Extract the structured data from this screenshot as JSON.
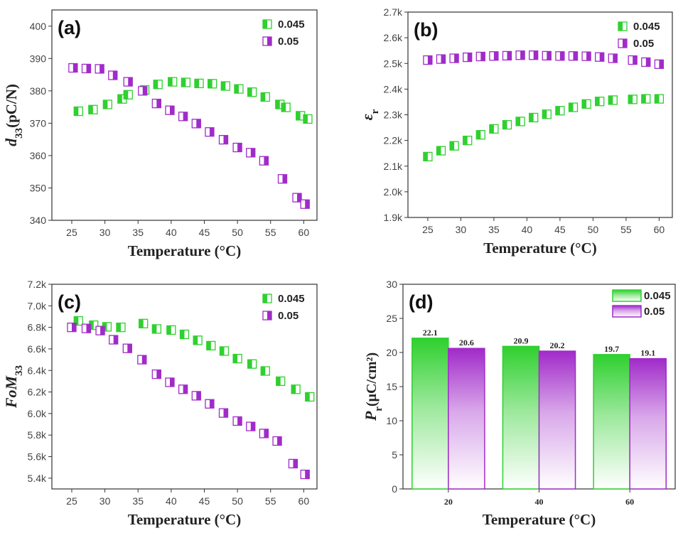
{
  "colors": {
    "green": "#2fd02f",
    "purple": "#a12bc9",
    "green_light": "#e9fbe9",
    "purple_light": "#f6ecfb"
  },
  "chart_data": [
    {
      "id": "a",
      "type": "scatter",
      "panel_label": "(a)",
      "ylabel_main": "d",
      "ylabel_sub": "33",
      "ylabel_rest": "(pC/N)",
      "xlabel": "Temperature (°C)",
      "xlim": [
        22,
        62
      ],
      "ylim": [
        340,
        405
      ],
      "xticks": [
        25,
        30,
        35,
        40,
        45,
        50,
        55,
        60
      ],
      "yticks": [
        340,
        350,
        360,
        370,
        380,
        390,
        400
      ],
      "ytick_labels": [
        "340",
        "350",
        "360",
        "370",
        "380",
        "390",
        "400"
      ],
      "series": [
        {
          "name": "0.045",
          "color": "green",
          "x": [
            26,
            28.2,
            30.4,
            32.6,
            33.5,
            36,
            38,
            40.2,
            42.2,
            44.2,
            46.2,
            48.2,
            50.2,
            52.2,
            54.2,
            56.4,
            57.3,
            59.5,
            60.6
          ],
          "y": [
            373.7,
            374.2,
            375.8,
            377.5,
            378.8,
            380.3,
            382,
            382.8,
            382.6,
            382.3,
            382.2,
            381.5,
            380.6,
            379.6,
            378.1,
            375.8,
            374.9,
            372.3,
            371.3
          ]
        },
        {
          "name": "0.05",
          "color": "purple",
          "x": [
            25.2,
            27.2,
            29.2,
            31.2,
            33.5,
            35.7,
            37.8,
            39.8,
            41.8,
            43.8,
            45.8,
            47.9,
            50,
            52,
            54,
            56.8,
            59,
            60.2
          ],
          "y": [
            387.1,
            386.9,
            386.8,
            384.8,
            382.8,
            380,
            376.1,
            374,
            372.1,
            369.9,
            367.3,
            364.9,
            362.5,
            360.9,
            358.4,
            352.8,
            347,
            345
          ]
        }
      ]
    },
    {
      "id": "b",
      "type": "scatter",
      "panel_label": "(b)",
      "ylabel_main": "ε",
      "ylabel_sub": "r",
      "ylabel_rest": "",
      "xlabel": "Temperature (°C)",
      "xlim": [
        22,
        62
      ],
      "ylim": [
        1.9,
        2.7
      ],
      "xticks": [
        25,
        30,
        35,
        40,
        45,
        50,
        55,
        60
      ],
      "yticks": [
        1.9,
        2.0,
        2.1,
        2.2,
        2.3,
        2.4,
        2.5,
        2.6,
        2.7
      ],
      "ytick_labels": [
        "1.9k",
        "2.0k",
        "2.1k",
        "2.2k",
        "2.3k",
        "2.4k",
        "2.5k",
        "2.6k",
        "2.7k"
      ],
      "series": [
        {
          "name": "0.045",
          "color": "green",
          "x": [
            25,
            27,
            29,
            31,
            33,
            35,
            37,
            39,
            41,
            43,
            45,
            47,
            49,
            51,
            53,
            56,
            58,
            60
          ],
          "y": [
            2.137,
            2.16,
            2.179,
            2.2,
            2.222,
            2.245,
            2.261,
            2.274,
            2.289,
            2.302,
            2.316,
            2.329,
            2.342,
            2.352,
            2.357,
            2.36,
            2.362,
            2.362
          ]
        },
        {
          "name": "0.05",
          "color": "purple",
          "x": [
            25,
            27,
            29,
            31,
            33,
            35,
            37,
            39,
            41,
            43,
            45,
            47,
            49,
            51,
            53,
            56,
            58,
            60
          ],
          "y": [
            2.513,
            2.517,
            2.52,
            2.524,
            2.527,
            2.529,
            2.53,
            2.532,
            2.532,
            2.53,
            2.529,
            2.529,
            2.528,
            2.525,
            2.52,
            2.513,
            2.505,
            2.497
          ]
        }
      ]
    },
    {
      "id": "c",
      "type": "scatter",
      "panel_label": "(c)",
      "ylabel_main": "FoM",
      "ylabel_sub": "33",
      "ylabel_rest": "",
      "xlabel": "Temperature (°C)",
      "xlim": [
        22,
        62
      ],
      "ylim": [
        5.3,
        7.2
      ],
      "xticks": [
        25,
        30,
        35,
        40,
        45,
        50,
        55,
        60
      ],
      "yticks": [
        5.4,
        5.6,
        5.8,
        6.0,
        6.2,
        6.4,
        6.6,
        6.8,
        7.0,
        7.2
      ],
      "ytick_labels": [
        "5.4k",
        "5.6k",
        "5.8k",
        "6.0k",
        "6.2k",
        "6.4k",
        "6.6k",
        "6.8k",
        "7.0k",
        "7.2k"
      ],
      "series": [
        {
          "name": "0.045",
          "color": "green",
          "x": [
            26,
            28.3,
            30.3,
            32.4,
            35.8,
            37.8,
            40,
            42,
            44,
            46,
            48,
            50,
            52.2,
            54.2,
            56.5,
            58.8,
            60.9
          ],
          "y": [
            6.86,
            6.82,
            6.805,
            6.8,
            6.835,
            6.785,
            6.775,
            6.735,
            6.68,
            6.63,
            6.58,
            6.51,
            6.46,
            6.395,
            6.3,
            6.225,
            6.155
          ]
        },
        {
          "name": "0.05",
          "color": "purple",
          "x": [
            25,
            27.2,
            29.3,
            31.3,
            33.4,
            35.6,
            37.8,
            39.8,
            41.8,
            43.8,
            45.8,
            47.9,
            50,
            52,
            54,
            56,
            58.4,
            60.2
          ],
          "y": [
            6.8,
            6.79,
            6.77,
            6.685,
            6.605,
            6.5,
            6.365,
            6.29,
            6.225,
            6.165,
            6.09,
            6.005,
            5.93,
            5.88,
            5.815,
            5.745,
            5.535,
            5.435
          ]
        }
      ]
    },
    {
      "id": "d",
      "type": "bar",
      "panel_label": "(d)",
      "ylabel_main": "P",
      "ylabel_sub": "r",
      "ylabel_rest": "(μC/cm²)",
      "xlabel": "Temperature (°C)",
      "categories": [
        "20",
        "40",
        "60"
      ],
      "ylim": [
        0,
        30
      ],
      "yticks": [
        0,
        5,
        10,
        15,
        20,
        25,
        30
      ],
      "ytick_labels": [
        "0",
        "5",
        "10",
        "15",
        "20",
        "25",
        "30"
      ],
      "series": [
        {
          "name": "0.045",
          "color": "green",
          "values": [
            22.1,
            20.9,
            19.7
          ],
          "value_labels": [
            "22.1",
            "20.9",
            "19.7"
          ]
        },
        {
          "name": "0.05",
          "color": "purple",
          "values": [
            20.6,
            20.2,
            19.1
          ],
          "value_labels": [
            "20.6",
            "20.2",
            "19.1"
          ]
        }
      ]
    }
  ]
}
